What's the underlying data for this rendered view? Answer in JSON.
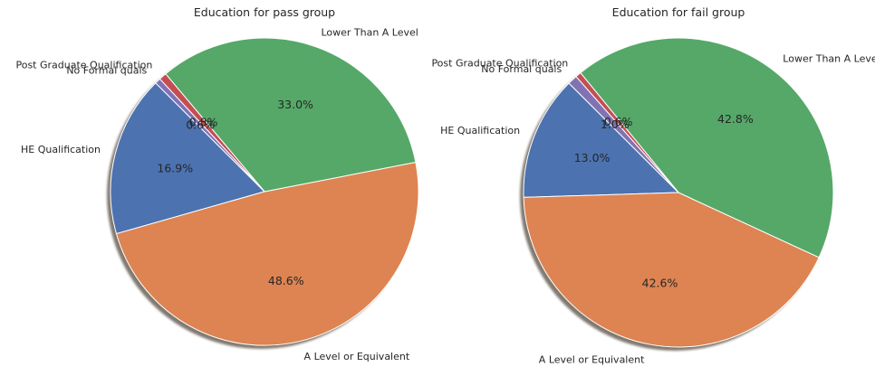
{
  "chart_data": [
    {
      "type": "pie",
      "title": "Education for pass group",
      "categories": [
        "HE Qualification",
        "A Level or Equivalent",
        "Lower Than A Level",
        "Post Graduate Qualification",
        "No Formal quals"
      ],
      "values": [
        16.9,
        48.6,
        33.0,
        0.8,
        0.6
      ],
      "value_labels": [
        "16.9%",
        "48.6%",
        "33.0%",
        "0.8%",
        "0.6%"
      ],
      "colors": [
        "#4c72b0",
        "#dd8452",
        "#55a868",
        "#c44e52",
        "#8172b3"
      ],
      "start_angle_deg": 135,
      "direction": "counterclockwise",
      "shadow": true
    },
    {
      "type": "pie",
      "title": "Education for fail group",
      "categories": [
        "HE Qualification",
        "A Level or Equivalent",
        "Lower Than A Level",
        "Post Graduate Qualification",
        "No Formal quals"
      ],
      "values": [
        13.0,
        42.6,
        42.8,
        0.6,
        1.0
      ],
      "value_labels": [
        "13.0%",
        "42.6%",
        "42.8%",
        "0.6%",
        "1.0%"
      ],
      "colors": [
        "#4c72b0",
        "#dd8452",
        "#55a868",
        "#c44e52",
        "#8172b3"
      ],
      "start_angle_deg": 135,
      "direction": "counterclockwise",
      "shadow": true
    }
  ]
}
